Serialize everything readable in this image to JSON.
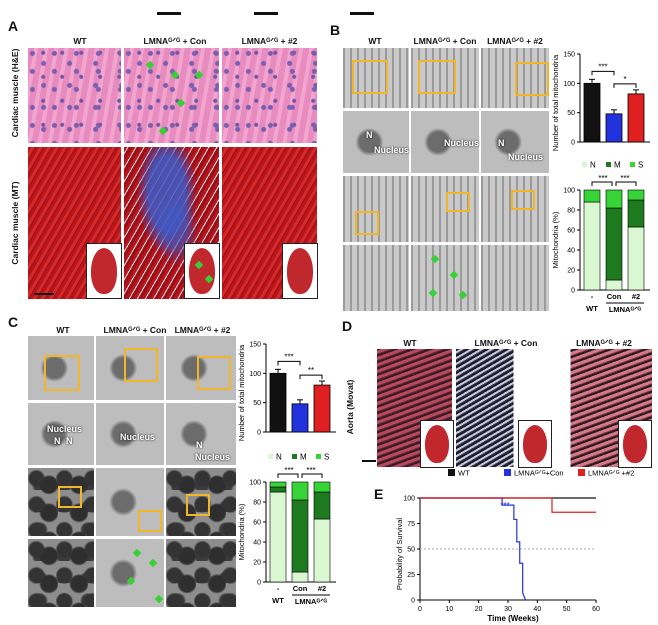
{
  "panels": {
    "A": "A",
    "B": "B",
    "C": "C",
    "D": "D",
    "E": "E"
  },
  "panelA": {
    "cols": [
      "WT",
      "LMNAᴳᐟᴳ + Con",
      "LMNAᴳᐟᴳ + #2"
    ],
    "rows": [
      "Cardiac muscle (H&E)",
      "Cardiac muscle (MT)"
    ]
  },
  "panelB": {
    "cols": [
      "WT",
      "LMNAᴳᐟᴳ + Con",
      "LMNAᴳᐟᴳ + #2"
    ],
    "nucleus": "Nucleus",
    "n": "N"
  },
  "panelC": {
    "cols": [
      "WT",
      "LMNAᴳᐟᴳ + Con",
      "LMNAᴳᐟᴳ + #2"
    ],
    "nucleus": "Nucleus",
    "n": "N"
  },
  "panelD": {
    "cols": [
      "WT",
      "LMNAᴳᐟᴳ + Con",
      "LMNAᴳᐟᴳ + #2"
    ],
    "row": "Aorta (Movat)"
  },
  "colors": {
    "wt": "#111111",
    "con": "#2233dd",
    "k2": "#e02020",
    "N": "#d9f7d0",
    "M": "#1e7a1e",
    "S": "#37d437"
  },
  "chart_data": [
    {
      "type": "bar",
      "id": "B-mito-count",
      "categories": [
        "WT",
        "Con",
        "#2"
      ],
      "values": [
        100,
        48,
        82
      ],
      "ylabel": "Number of total mitochondria",
      "yticks": [
        0,
        50,
        100,
        150
      ],
      "ylim": [
        0,
        150
      ],
      "significance": [
        "***",
        "*"
      ]
    },
    {
      "type": "bar",
      "id": "B-mito-pct",
      "stacked": true,
      "categories": [
        "-",
        "Con",
        "#2"
      ],
      "group_label": "LMNAᴳᐟᴳ",
      "wt_label": "WT",
      "legend": [
        "N",
        "M",
        "S"
      ],
      "series": [
        {
          "name": "N",
          "values": [
            88,
            10,
            63
          ]
        },
        {
          "name": "M",
          "values": [
            0,
            72,
            27
          ]
        },
        {
          "name": "S",
          "values": [
            12,
            18,
            10
          ]
        }
      ],
      "ylabel": "Mitochondria (%)",
      "yticks": [
        0,
        20,
        40,
        60,
        80,
        100
      ],
      "ylim": [
        0,
        100
      ],
      "significance": [
        "***",
        "***"
      ]
    },
    {
      "type": "bar",
      "id": "C-mito-count",
      "categories": [
        "WT",
        "Con",
        "#2"
      ],
      "values": [
        100,
        48,
        80
      ],
      "ylabel": "Number of total mitochondria",
      "yticks": [
        0,
        50,
        100,
        150
      ],
      "ylim": [
        0,
        150
      ],
      "significance": [
        "***",
        "**"
      ]
    },
    {
      "type": "bar",
      "id": "C-mito-pct",
      "stacked": true,
      "categories": [
        "-",
        "Con",
        "#2"
      ],
      "group_label": "LMNAᴳᐟᴳ",
      "wt_label": "WT",
      "legend": [
        "N",
        "M",
        "S"
      ],
      "series": [
        {
          "name": "N",
          "values": [
            90,
            10,
            63
          ]
        },
        {
          "name": "M",
          "values": [
            5,
            72,
            27
          ]
        },
        {
          "name": "S",
          "values": [
            5,
            18,
            10
          ]
        }
      ],
      "ylabel": "Mitochondria (%)",
      "yticks": [
        0,
        20,
        40,
        60,
        80,
        100
      ],
      "ylim": [
        0,
        100
      ],
      "significance": [
        "***",
        "***"
      ]
    },
    {
      "type": "line",
      "id": "E-survival",
      "xlabel": "Time (Weeks)",
      "ylabel": "Probability of Survival",
      "xticks": [
        0,
        10,
        20,
        30,
        40,
        50,
        60
      ],
      "yticks": [
        0,
        25,
        50,
        75,
        100
      ],
      "xlim": [
        0,
        60
      ],
      "ylim": [
        0,
        100
      ],
      "legend": [
        "WT",
        "LMNAᴳᐟᴳ+Con",
        "LMNAᴳᐟᴳ +#2"
      ],
      "series": [
        {
          "name": "WT",
          "x": [
            0,
            60
          ],
          "y": [
            100,
            100
          ]
        },
        {
          "name": "LMNAᴳᐟᴳ+Con",
          "x": [
            0,
            28,
            28,
            32,
            32,
            33,
            33,
            34,
            34,
            35,
            35,
            36
          ],
          "y": [
            100,
            100,
            93,
            93,
            79,
            79,
            57,
            57,
            36,
            36,
            7,
            0
          ]
        },
        {
          "name": "LMNAᴳᐟᴳ +#2",
          "x": [
            0,
            45,
            45,
            60
          ],
          "y": [
            100,
            100,
            86,
            86
          ]
        }
      ],
      "significance": "***"
    }
  ]
}
